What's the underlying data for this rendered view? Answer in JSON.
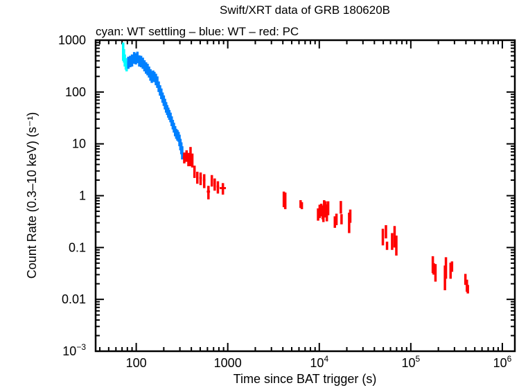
{
  "chart_data": {
    "type": "scatter",
    "title": "Swift/XRT data of GRB 180620B",
    "subtitle": "cyan: WT settling – blue: WT – red: PC",
    "xlabel": "Time since BAT trigger (s)",
    "ylabel": "Count Rate (0.3–10 keV) (s⁻¹)",
    "xscale": "log",
    "yscale": "log",
    "xlim": [
      36,
      1370000
    ],
    "ylim": [
      0.001,
      1000
    ],
    "grid": false,
    "x_ticks": [
      {
        "value": 100,
        "base": "100",
        "exp": ""
      },
      {
        "value": 1000,
        "base": "1000",
        "exp": ""
      },
      {
        "value": 10000,
        "base": "10",
        "exp": "4"
      },
      {
        "value": 100000,
        "base": "10",
        "exp": "5"
      },
      {
        "value": 1000000,
        "base": "10",
        "exp": "6"
      }
    ],
    "y_ticks": [
      {
        "value": 1000,
        "base": "1000",
        "exp": ""
      },
      {
        "value": 100,
        "base": "100",
        "exp": ""
      },
      {
        "value": 10,
        "base": "10",
        "exp": ""
      },
      {
        "value": 1,
        "base": "1",
        "exp": ""
      },
      {
        "value": 0.1,
        "base": "0.1",
        "exp": ""
      },
      {
        "value": 0.01,
        "base": "0.01",
        "exp": ""
      },
      {
        "value": 0.001,
        "base": "10",
        "exp": "−3"
      }
    ],
    "series": [
      {
        "mode": "WT settling",
        "color": "#00ffff",
        "points": [
          [
            72,
            650,
            250,
            0
          ],
          [
            73.5,
            520,
            150,
            0
          ],
          [
            75,
            420,
            110,
            0
          ],
          [
            77,
            360,
            90,
            0
          ],
          [
            78.5,
            320,
            70,
            0
          ]
        ]
      },
      {
        "mode": "WT",
        "color": "#0080ff",
        "points": [
          [
            82,
            380,
            100,
            0
          ],
          [
            86,
            400,
            100,
            0
          ],
          [
            90,
            420,
            110,
            0
          ],
          [
            95,
            470,
            120,
            0
          ],
          [
            99,
            450,
            110,
            0
          ],
          [
            103,
            480,
            120,
            0
          ],
          [
            108,
            410,
            100,
            0
          ],
          [
            113,
            400,
            100,
            0
          ],
          [
            118,
            370,
            90,
            0
          ],
          [
            123,
            330,
            80,
            0
          ],
          [
            128,
            300,
            75,
            0
          ],
          [
            133,
            280,
            70,
            0
          ],
          [
            138,
            250,
            60,
            0
          ],
          [
            143,
            220,
            55,
            0
          ],
          [
            148,
            200,
            50,
            0
          ],
          [
            153,
            210,
            50,
            0
          ],
          [
            158,
            200,
            45,
            0
          ],
          [
            164,
            180,
            45,
            0
          ],
          [
            170,
            160,
            40,
            0
          ],
          [
            176,
            130,
            30,
            0
          ],
          [
            182,
            110,
            25,
            0
          ],
          [
            188,
            95,
            22,
            0
          ],
          [
            194,
            80,
            18,
            0
          ],
          [
            200,
            70,
            16,
            0
          ],
          [
            206,
            60,
            14,
            0
          ],
          [
            212,
            52,
            12,
            0
          ],
          [
            218,
            46,
            10,
            0
          ],
          [
            224,
            41,
            9,
            0
          ],
          [
            230,
            37,
            8,
            0
          ],
          [
            237,
            33,
            7,
            0
          ],
          [
            244,
            28,
            6,
            0
          ],
          [
            251,
            24,
            5,
            0
          ],
          [
            258,
            21,
            4.5,
            0
          ],
          [
            266,
            18,
            4,
            0
          ],
          [
            274,
            16,
            3.5,
            0
          ],
          [
            282,
            15,
            3.5,
            0
          ],
          [
            290,
            14,
            3,
            0
          ],
          [
            297,
            12,
            3,
            0
          ],
          [
            304,
            10,
            2.5,
            0
          ],
          [
            311,
            8.5,
            2.2,
            0
          ],
          [
            318,
            7,
            2,
            0
          ]
        ]
      },
      {
        "mode": "PC",
        "color": "#ff0000",
        "points": [
          [
            335,
            5.5,
            1.3,
            12
          ],
          [
            355,
            6.0,
            1.5,
            10
          ],
          [
            372,
            5.2,
            1.5,
            10
          ],
          [
            392,
            6.2,
            2.5,
            10
          ],
          [
            410,
            5.0,
            1.5,
            10
          ],
          [
            433,
            3.0,
            0.8,
            10
          ],
          [
            465,
            2.3,
            0.6,
            14
          ],
          [
            505,
            2.2,
            0.6,
            16
          ],
          [
            553,
            2.0,
            0.6,
            18
          ],
          [
            615,
            1.2,
            0.35,
            25
          ],
          [
            670,
            2.0,
            0.5,
            20
          ],
          [
            720,
            1.7,
            0.45,
            20
          ],
          [
            780,
            1.5,
            0.4,
            25
          ],
          [
            885,
            1.4,
            0.35,
            70
          ],
          [
            4100,
            0.9,
            0.3,
            0
          ],
          [
            4250,
            0.85,
            0.3,
            0
          ],
          [
            6250,
            0.7,
            0.12,
            0
          ],
          [
            6450,
            0.65,
            0.1,
            0
          ],
          [
            9700,
            0.45,
            0.12,
            0
          ],
          [
            10100,
            0.52,
            0.15,
            0
          ],
          [
            10500,
            0.55,
            0.15,
            0
          ],
          [
            10900,
            0.5,
            0.15,
            0
          ],
          [
            11300,
            0.62,
            0.2,
            0
          ],
          [
            11700,
            0.58,
            0.2,
            0
          ],
          [
            12100,
            0.5,
            0.18,
            0
          ],
          [
            12500,
            0.6,
            0.18,
            0
          ],
          [
            11100,
            0.38,
            0.07,
            0
          ],
          [
            14800,
            0.32,
            0.08,
            0
          ],
          [
            15400,
            0.36,
            0.09,
            0
          ],
          [
            17200,
            0.62,
            0.17,
            0
          ],
          [
            17500,
            0.36,
            0.08,
            0
          ],
          [
            21200,
            0.33,
            0.14,
            0
          ],
          [
            21800,
            0.42,
            0.12,
            0
          ],
          [
            49500,
            0.17,
            0.06,
            0
          ],
          [
            53500,
            0.21,
            0.06,
            0
          ],
          [
            55000,
            0.11,
            0.02,
            0
          ],
          [
            62500,
            0.14,
            0.05,
            0
          ],
          [
            66500,
            0.18,
            0.08,
            0
          ],
          [
            69500,
            0.12,
            0.05,
            0
          ],
          [
            174000,
            0.05,
            0.018,
            0
          ],
          [
            178000,
            0.04,
            0.01,
            0
          ],
          [
            186000,
            0.035,
            0.013,
            0
          ],
          [
            236000,
            0.03,
            0.015,
            0
          ],
          [
            242000,
            0.045,
            0.02,
            0
          ],
          [
            272000,
            0.038,
            0.013,
            0
          ],
          [
            282000,
            0.044,
            0.01,
            0
          ],
          [
            395000,
            0.025,
            0.006,
            0
          ],
          [
            410000,
            0.019,
            0.005,
            0
          ],
          [
            420000,
            0.016,
            0.003,
            0
          ]
        ]
      }
    ]
  }
}
